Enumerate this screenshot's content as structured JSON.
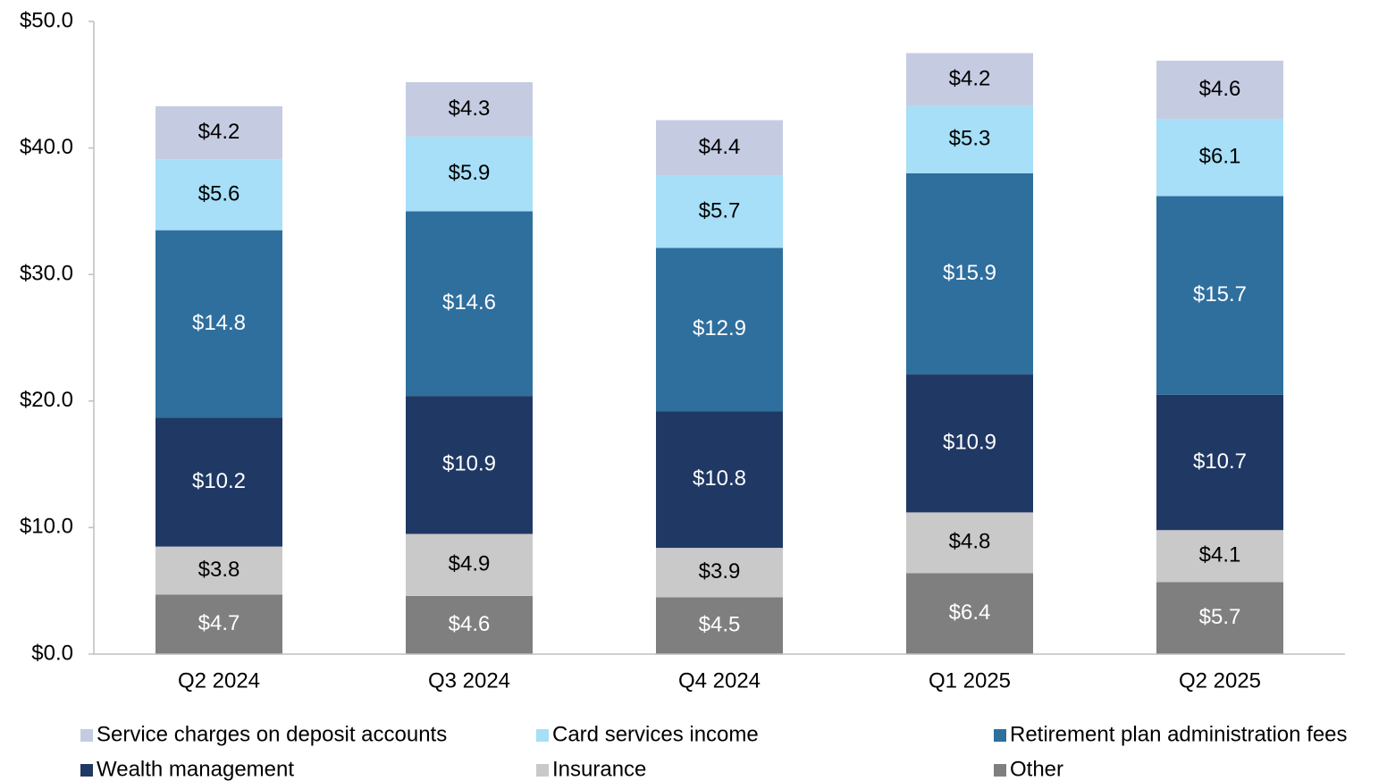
{
  "chart_data": {
    "type": "stacked_bar",
    "categories": [
      "Q2 2024",
      "Q3 2024",
      "Q4 2024",
      "Q1 2025",
      "Q2 2025"
    ],
    "series": [
      {
        "name": "Other",
        "color": "#7f7f7f",
        "values": [
          4.7,
          4.6,
          4.5,
          6.4,
          5.7
        ],
        "value_labels": [
          "$4.7",
          "$4.6",
          "$4.5",
          "$6.4",
          "$5.7"
        ]
      },
      {
        "name": "Insurance",
        "color": "#c9c9c9",
        "values": [
          3.8,
          4.9,
          3.9,
          4.8,
          4.1
        ],
        "value_labels": [
          "$3.8",
          "$4.9",
          "$3.9",
          "$4.8",
          "$4.1"
        ]
      },
      {
        "name": "Wealth management",
        "color": "#203864",
        "values": [
          10.2,
          10.9,
          10.8,
          10.9,
          10.7
        ],
        "value_labels": [
          "$10.2",
          "$10.9",
          "$10.8",
          "$10.9",
          "$10.7"
        ]
      },
      {
        "name": "Retirement plan administration fees",
        "color": "#2e6f9e",
        "values": [
          14.8,
          14.6,
          12.9,
          15.9,
          15.7
        ],
        "value_labels": [
          "$14.8",
          "$14.6",
          "$12.9",
          "$15.9",
          "$15.7"
        ]
      },
      {
        "name": "Card services income",
        "color": "#a6dff7",
        "values": [
          5.6,
          5.9,
          5.7,
          5.3,
          6.1
        ],
        "value_labels": [
          "$5.6",
          "$5.9",
          "$5.7",
          "$5.3",
          "$6.1"
        ]
      },
      {
        "name": "Service charges on deposit accounts",
        "color": "#c5cce2",
        "values": [
          4.2,
          4.3,
          4.4,
          4.2,
          4.6
        ],
        "value_labels": [
          "$4.2",
          "$4.3",
          "$4.4",
          "$4.2",
          "$4.6"
        ]
      }
    ],
    "ylim": [
      0,
      50
    ],
    "yticks": [
      {
        "value": 0,
        "label": "$0.0"
      },
      {
        "value": 10,
        "label": "$10.0"
      },
      {
        "value": 20,
        "label": "$20.0"
      },
      {
        "value": 30,
        "label": "$30.0"
      },
      {
        "value": 40,
        "label": "$40.0"
      },
      {
        "value": 50,
        "label": "$50.0"
      }
    ],
    "grid": false,
    "legend": "bottom"
  }
}
